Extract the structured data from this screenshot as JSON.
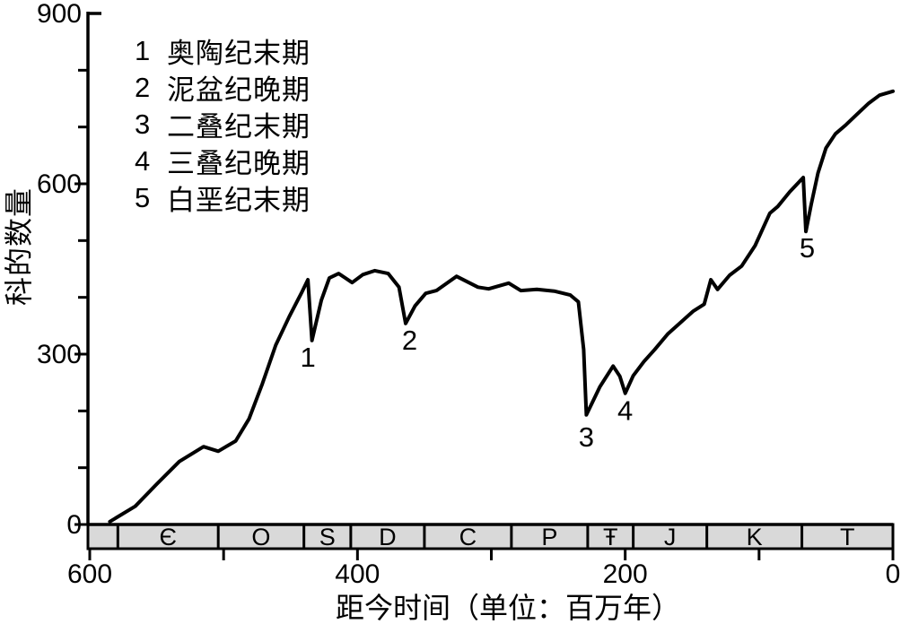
{
  "chart_data": {
    "type": "line",
    "title": "",
    "xlabel": "距今时间（单位：百万年）",
    "ylabel": "科的数量",
    "x_axis": {
      "min": 0,
      "max": 600,
      "reversed": true,
      "ticks": [
        600,
        500,
        400,
        300,
        200,
        100,
        0
      ],
      "labeled_ticks": [
        600,
        400,
        200,
        0
      ]
    },
    "y_axis": {
      "min": 0,
      "max": 900,
      "ticks": [
        0,
        100,
        200,
        300,
        400,
        500,
        600,
        700,
        800,
        900
      ],
      "labeled_ticks": [
        0,
        300,
        600,
        900
      ]
    },
    "series": [
      {
        "name": "科的数量",
        "points": [
          [
            585,
            5
          ],
          [
            566,
            32
          ],
          [
            550,
            71
          ],
          [
            533,
            111
          ],
          [
            515,
            137
          ],
          [
            504,
            129
          ],
          [
            491,
            147
          ],
          [
            481,
            186
          ],
          [
            471,
            248
          ],
          [
            461,
            316
          ],
          [
            451,
            366
          ],
          [
            442,
            407
          ],
          [
            437,
            431
          ],
          [
            434,
            324
          ],
          [
            427,
            395
          ],
          [
            421,
            434
          ],
          [
            414,
            442
          ],
          [
            404,
            426
          ],
          [
            396,
            440
          ],
          [
            387,
            447
          ],
          [
            377,
            442
          ],
          [
            369,
            418
          ],
          [
            364,
            354
          ],
          [
            357,
            385
          ],
          [
            349,
            407
          ],
          [
            341,
            412
          ],
          [
            326,
            437
          ],
          [
            310,
            418
          ],
          [
            302,
            415
          ],
          [
            287,
            425
          ],
          [
            278,
            412
          ],
          [
            266,
            414
          ],
          [
            253,
            411
          ],
          [
            241,
            404
          ],
          [
            235,
            392
          ],
          [
            231,
            308
          ],
          [
            229,
            193
          ],
          [
            219,
            242
          ],
          [
            209,
            279
          ],
          [
            204,
            261
          ],
          [
            200,
            231
          ],
          [
            194,
            262
          ],
          [
            186,
            287
          ],
          [
            178,
            308
          ],
          [
            168,
            336
          ],
          [
            159,
            355
          ],
          [
            149,
            376
          ],
          [
            141,
            388
          ],
          [
            136,
            431
          ],
          [
            131,
            414
          ],
          [
            122,
            439
          ],
          [
            113,
            455
          ],
          [
            103,
            491
          ],
          [
            92,
            548
          ],
          [
            86,
            560
          ],
          [
            77,
            586
          ],
          [
            67,
            611
          ],
          [
            65,
            516
          ],
          [
            61,
            564
          ],
          [
            56,
            619
          ],
          [
            50,
            663
          ],
          [
            43,
            688
          ],
          [
            35,
            704
          ],
          [
            27,
            722
          ],
          [
            18,
            742
          ],
          [
            10,
            756
          ],
          [
            0,
            763
          ]
        ]
      }
    ],
    "event_markers": [
      {
        "num": "1",
        "ma": 437,
        "value": 295
      },
      {
        "num": "2",
        "ma": 361,
        "value": 325
      },
      {
        "num": "3",
        "ma": 229,
        "value": 155
      },
      {
        "num": "4",
        "ma": 200,
        "value": 201
      },
      {
        "num": "5",
        "ma": 64,
        "value": 488
      }
    ],
    "legend": [
      {
        "num": "1",
        "label": "奥陶纪末期"
      },
      {
        "num": "2",
        "label": "泥盆纪晚期"
      },
      {
        "num": "3",
        "label": "二叠纪末期"
      },
      {
        "num": "4",
        "label": "三叠纪晚期"
      },
      {
        "num": "5",
        "label": "白垩纪末期"
      }
    ],
    "geologic_periods": [
      {
        "label": "",
        "from": 600,
        "to": 579
      },
      {
        "label": "Є",
        "from": 579,
        "to": 504
      },
      {
        "label": "O",
        "from": 504,
        "to": 440
      },
      {
        "label": "S",
        "from": 440,
        "to": 405
      },
      {
        "label": "D",
        "from": 405,
        "to": 350
      },
      {
        "label": "C",
        "from": 350,
        "to": 285
      },
      {
        "label": "P",
        "from": 285,
        "to": 228
      },
      {
        "label": "Ŧ",
        "from": 228,
        "to": 194
      },
      {
        "label": "J",
        "from": 194,
        "to": 139
      },
      {
        "label": "K",
        "from": 139,
        "to": 68
      },
      {
        "label": "T",
        "from": 68,
        "to": 0
      }
    ],
    "layout_hints": {
      "legend_position": "top-left-inside",
      "grid": false
    },
    "colors": {
      "line": "#000000",
      "period_bar_fill": "#d9d9d9",
      "background": "#ffffff"
    }
  }
}
